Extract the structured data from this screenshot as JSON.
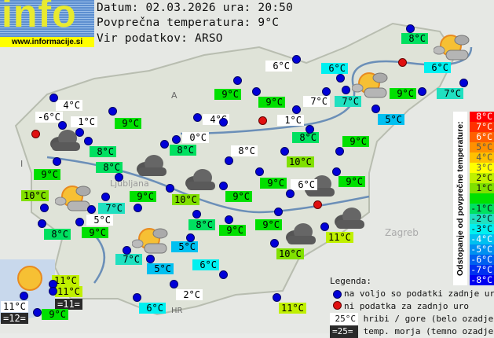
{
  "logo": {
    "text": "info",
    "url": "www.informacije.si"
  },
  "header": {
    "date_line": "Datum: 02.03.2026 ura: 20:50",
    "avg_line": "Povprečna temperatura: 9°C",
    "source_line": "Vir podatkov: ARSO"
  },
  "average_temp": 9,
  "map_labels": [
    "A",
    "I",
    "HR",
    "Zagreb",
    "Ljubljana"
  ],
  "stations": [
    {
      "label": "4°C",
      "kind": "mountain"
    },
    {
      "label": "-6°C",
      "kind": "mountain"
    },
    {
      "label": "1°C",
      "kind": "mountain"
    },
    {
      "label": "9°C",
      "kind": "lowland"
    },
    {
      "label": "8°C",
      "kind": "lowland"
    },
    {
      "label": "8°C",
      "kind": "lowland"
    },
    {
      "label": "9°C",
      "kind": "lowland"
    },
    {
      "label": "10°C",
      "kind": "lowland"
    },
    {
      "label": "7°C",
      "kind": "lowland"
    },
    {
      "label": "5°C",
      "kind": "mountain"
    },
    {
      "label": "8°C",
      "kind": "lowland"
    },
    {
      "label": "9°C",
      "kind": "lowland"
    },
    {
      "label": "4°C",
      "kind": "mountain"
    },
    {
      "label": "0°C",
      "kind": "mountain"
    },
    {
      "label": "8°C",
      "kind": "lowland"
    },
    {
      "label": "9°C",
      "kind": "lowland"
    },
    {
      "label": "10°C",
      "kind": "lowland"
    },
    {
      "label": "8°C",
      "kind": "mountain"
    },
    {
      "label": "9°C",
      "kind": "lowland"
    },
    {
      "label": "9°C",
      "kind": "lowland"
    },
    {
      "label": "10°C",
      "kind": "lowland"
    },
    {
      "label": "6°C",
      "kind": "mountain"
    },
    {
      "label": "9°C",
      "kind": "lowland"
    },
    {
      "label": "8°C",
      "kind": "lowland"
    },
    {
      "label": "9°C",
      "kind": "lowland"
    },
    {
      "label": "9°C",
      "kind": "lowland"
    },
    {
      "label": "11°C",
      "kind": "lowland"
    },
    {
      "label": "10°C",
      "kind": "lowland"
    },
    {
      "label": "7°C",
      "kind": "lowland"
    },
    {
      "label": "5°C",
      "kind": "lowland"
    },
    {
      "label": "5°C",
      "kind": "lowland"
    },
    {
      "label": "6°C",
      "kind": "lowland"
    },
    {
      "label": "2°C",
      "kind": "mountain"
    },
    {
      "label": "6°C",
      "kind": "lowland"
    },
    {
      "label": "11°C",
      "kind": "lowland"
    },
    {
      "label": "11°C",
      "kind": "lowland"
    },
    {
      "label": "11°C",
      "kind": "lowland"
    },
    {
      "label": "=11=",
      "kind": "sea"
    },
    {
      "label": "11°C",
      "kind": "mountain"
    },
    {
      "label": "=12=",
      "kind": "sea"
    },
    {
      "label": "9°C",
      "kind": "lowland"
    },
    {
      "label": "9°C",
      "kind": "lowland"
    },
    {
      "label": "9°C",
      "kind": "lowland"
    },
    {
      "label": "6°C",
      "kind": "mountain"
    },
    {
      "label": "7°C",
      "kind": "mountain"
    },
    {
      "label": "1°C",
      "kind": "mountain"
    },
    {
      "label": "8°C",
      "kind": "lowland"
    },
    {
      "label": "9°C",
      "kind": "lowland"
    },
    {
      "label": "6°C",
      "kind": "lowland"
    },
    {
      "label": "7°C",
      "kind": "lowland"
    },
    {
      "label": "5°C",
      "kind": "lowland"
    },
    {
      "label": "9°C",
      "kind": "lowland"
    },
    {
      "label": "7°C",
      "kind": "lowland"
    },
    {
      "label": "8°C",
      "kind": "lowland"
    },
    {
      "label": "6°C",
      "kind": "lowland"
    }
  ],
  "weather_icons": [
    "cloud",
    "cloud",
    "cloud",
    "cloud",
    "cloud",
    "cloud",
    "partly-cloudy",
    "partly-cloudy",
    "partly-cloudy",
    "partly-cloudy",
    "sun"
  ],
  "scale": {
    "title": "Odstopanje od povprečne temperature:",
    "rows": [
      {
        "label": "8°C",
        "color": "#ff0000"
      },
      {
        "label": "7°C",
        "color": "#ff3000"
      },
      {
        "label": "6°C",
        "color": "#ff6000"
      },
      {
        "label": "5°C",
        "color": "#ff9000"
      },
      {
        "label": "4°C",
        "color": "#ffc000"
      },
      {
        "label": "3°C",
        "color": "#ffff00"
      },
      {
        "label": "2°C",
        "color": "#c0f000"
      },
      {
        "label": "1°C",
        "color": "#80e000"
      },
      {
        "label": "",
        "color": "#00e000"
      },
      {
        "label": "-1°C",
        "color": "#00e060"
      },
      {
        "label": "-2°C",
        "color": "#20e0c0"
      },
      {
        "label": "-3°C",
        "color": "#00f0f0"
      },
      {
        "label": "-4°C",
        "color": "#00c0f0"
      },
      {
        "label": "-5°C",
        "color": "#0090f0"
      },
      {
        "label": "-6°C",
        "color": "#0060f0"
      },
      {
        "label": "-7°C",
        "color": "#0030f0"
      },
      {
        "label": "-8°C",
        "color": "#0000f0"
      }
    ]
  },
  "legend": {
    "title": "Legenda:",
    "blue": "na voljo so podatki zadnje ure",
    "red": "ni podatka za zadnjo uro",
    "mountain_sample": "25°C",
    "mountain_text": "hribi / gore (belo ozadje)",
    "sea_sample": "=25=",
    "sea_text": "temp. morja (temno ozadje)"
  }
}
